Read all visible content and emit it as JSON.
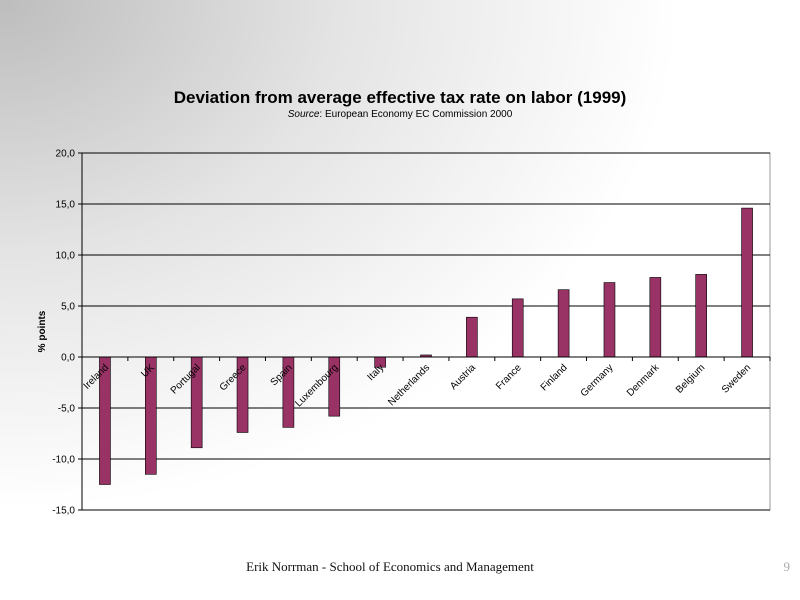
{
  "slide": {
    "footer": "Erik  Norrman - School of Economics  and Management",
    "page_number": "9"
  },
  "chart_data": {
    "type": "bar",
    "title": "Deviation from average effective tax rate on labor (1999)",
    "subtitle_prefix": "Source",
    "subtitle_rest": ": European Economy EC Commission 2000",
    "ylabel": "% points",
    "xlabel": "",
    "ylim": [
      -15,
      20
    ],
    "yticks": [
      "20,0",
      "15,0",
      "10,0",
      "5,0",
      "0,0",
      "-5,0",
      "-10,0",
      "-15,0"
    ],
    "grid": true,
    "bar_color": "#993366",
    "categories": [
      "Ireland",
      "UK",
      "Portugal",
      "Greece",
      "Spain",
      "Luxembourg",
      "Italy",
      "Netherlands",
      "Austria",
      "France",
      "Finland",
      "Germany",
      "Denmark",
      "Belgium",
      "Sweden"
    ],
    "values": [
      -12.5,
      -11.5,
      -8.9,
      -7.4,
      -6.9,
      -5.8,
      -1.0,
      0.2,
      3.9,
      5.7,
      6.6,
      7.3,
      7.8,
      8.1,
      14.6
    ]
  }
}
